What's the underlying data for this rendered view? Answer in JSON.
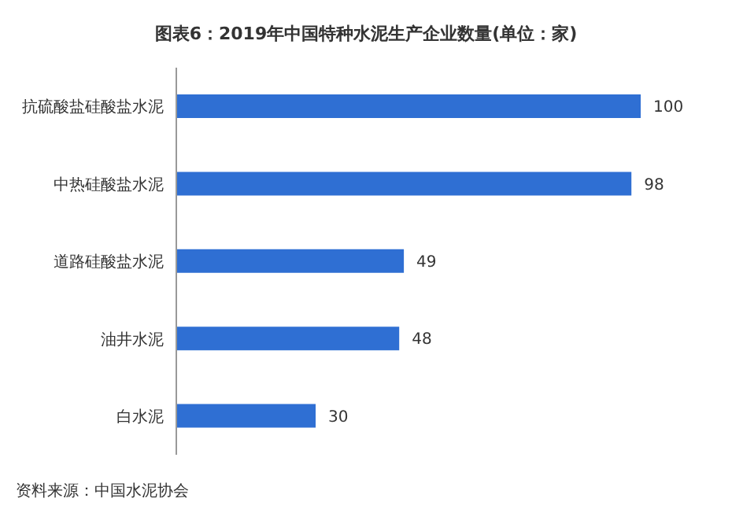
{
  "chart_data": {
    "type": "bar",
    "orientation": "horizontal",
    "title": "图表6：2019年中国特种水泥生产企业数量(单位：家)",
    "categories": [
      "抗硫酸盐硅酸盐水泥",
      "中热硅酸盐水泥",
      "道路硅酸盐水泥",
      "油井水泥",
      "白水泥"
    ],
    "values": [
      100,
      98,
      49,
      48,
      30
    ],
    "color": "#2f6fd3",
    "data_labels": true,
    "annotations": [
      "资料来源：中国水泥协会"
    ]
  }
}
